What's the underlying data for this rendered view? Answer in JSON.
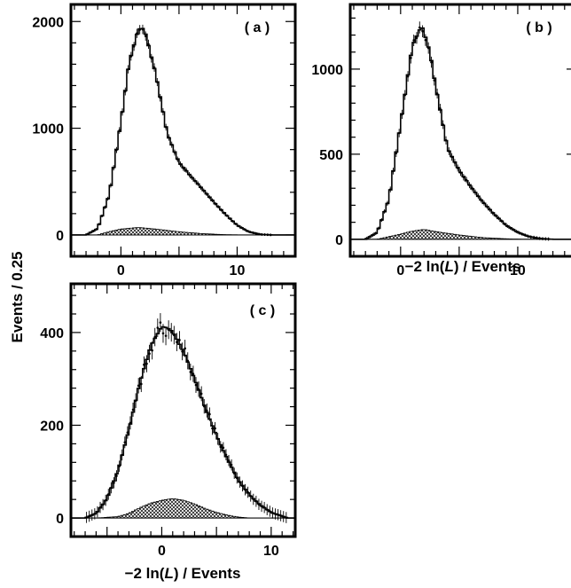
{
  "figure": {
    "y_axis_label": "Events / 0.25",
    "x_axis_label_prefix": "−2 ln(",
    "x_axis_label_var": "L",
    "x_axis_label_suffix": ") / Events"
  },
  "chart_data": [
    {
      "type": "histogram",
      "panel_label": "( a )",
      "xlim": [
        -4.3,
        15.0
      ],
      "ylim": [
        -200,
        2160
      ],
      "x_ticks": [
        0,
        10
      ],
      "x_tick_labels": [
        "0",
        "10"
      ],
      "y_ticks": [
        0,
        1000,
        2000
      ],
      "y_tick_labels": [
        "0",
        "1000",
        "2000"
      ],
      "show_x_label": false,
      "signal_profile": [
        [
          -3.0,
          0
        ],
        [
          -2.0,
          60
        ],
        [
          -1.0,
          350
        ],
        [
          0.0,
          1000
        ],
        [
          0.7,
          1550
        ],
        [
          1.5,
          1860
        ],
        [
          2.0,
          1870
        ],
        [
          3.0,
          1450
        ],
        [
          4.0,
          900
        ],
        [
          5.0,
          650
        ],
        [
          6.0,
          530
        ],
        [
          7.0,
          420
        ],
        [
          8.0,
          300
        ],
        [
          9.0,
          190
        ],
        [
          10.0,
          90
        ],
        [
          11.0,
          30
        ],
        [
          12.0,
          5
        ],
        [
          13.0,
          0
        ]
      ],
      "background_profile": [
        [
          -2.0,
          0
        ],
        [
          -1.0,
          30
        ],
        [
          0.0,
          55
        ],
        [
          1.5,
          70
        ],
        [
          3.0,
          55
        ],
        [
          5.0,
          30
        ],
        [
          7.0,
          12
        ],
        [
          9.0,
          3
        ],
        [
          10.5,
          0
        ]
      ],
      "data_noise_fraction": 0.01,
      "data_error_min": 12
    },
    {
      "type": "histogram",
      "panel_label": "( b )",
      "xlim": [
        -4.3,
        15.0
      ],
      "ylim": [
        -100,
        1380
      ],
      "x_ticks": [
        0,
        10
      ],
      "x_tick_labels": [
        "0",
        "10"
      ],
      "y_ticks": [
        0,
        500,
        1000
      ],
      "y_tick_labels": [
        "0",
        "500",
        "1000"
      ],
      "show_x_label": true,
      "signal_profile": [
        [
          -3.0,
          0
        ],
        [
          -2.0,
          40
        ],
        [
          -1.0,
          220
        ],
        [
          0.0,
          650
        ],
        [
          1.0,
          1090
        ],
        [
          1.8,
          1200
        ],
        [
          2.5,
          1050
        ],
        [
          3.0,
          850
        ],
        [
          4.0,
          500
        ],
        [
          5.0,
          380
        ],
        [
          6.0,
          290
        ],
        [
          7.0,
          210
        ],
        [
          8.0,
          140
        ],
        [
          9.0,
          80
        ],
        [
          10.0,
          40
        ],
        [
          11.0,
          15
        ],
        [
          12.0,
          4
        ],
        [
          13.0,
          0
        ]
      ],
      "background_profile": [
        [
          -2.0,
          0
        ],
        [
          -1.0,
          15
        ],
        [
          0.0,
          30
        ],
        [
          1.0,
          48
        ],
        [
          2.0,
          58
        ],
        [
          3.0,
          45
        ],
        [
          5.0,
          25
        ],
        [
          7.0,
          10
        ],
        [
          9.0,
          3
        ],
        [
          10.5,
          0
        ]
      ],
      "data_noise_fraction": 0.015,
      "data_error_min": 10
    },
    {
      "type": "histogram",
      "panel_label": "( c )",
      "xlim": [
        -8.3,
        12.2
      ],
      "ylim": [
        -40,
        505
      ],
      "x_ticks": [
        0,
        10
      ],
      "x_tick_labels": [
        "0",
        "10"
      ],
      "y_ticks": [
        0,
        200,
        400
      ],
      "y_tick_labels": [
        "0",
        "200",
        "400"
      ],
      "show_x_label": true,
      "signal_profile": [
        [
          -7.0,
          0
        ],
        [
          -6.0,
          10
        ],
        [
          -5.0,
          40
        ],
        [
          -4.0,
          100
        ],
        [
          -3.0,
          180
        ],
        [
          -2.0,
          270
        ],
        [
          -1.0,
          340
        ],
        [
          0.0,
          375
        ],
        [
          0.5,
          370
        ],
        [
          1.0,
          360
        ],
        [
          2.0,
          320
        ],
        [
          3.0,
          270
        ],
        [
          4.0,
          215
        ],
        [
          5.0,
          165
        ],
        [
          6.0,
          120
        ],
        [
          7.0,
          80
        ],
        [
          8.0,
          50
        ],
        [
          9.0,
          28
        ],
        [
          10.0,
          12
        ],
        [
          11.0,
          4
        ],
        [
          11.5,
          0
        ]
      ],
      "background_profile": [
        [
          -6.0,
          0
        ],
        [
          -4.0,
          3
        ],
        [
          -3.0,
          10
        ],
        [
          -2.0,
          22
        ],
        [
          -1.0,
          32
        ],
        [
          0.0,
          38
        ],
        [
          1.0,
          42
        ],
        [
          2.0,
          38
        ],
        [
          3.0,
          30
        ],
        [
          4.0,
          20
        ],
        [
          5.0,
          12
        ],
        [
          6.0,
          6
        ],
        [
          7.0,
          2
        ],
        [
          8.0,
          0
        ]
      ],
      "data_noise_fraction": 0.05,
      "data_error_min": 12
    }
  ],
  "colors": {
    "line": "#000000",
    "background_fill": "#bdbdbd",
    "paper": "#ffffff"
  }
}
